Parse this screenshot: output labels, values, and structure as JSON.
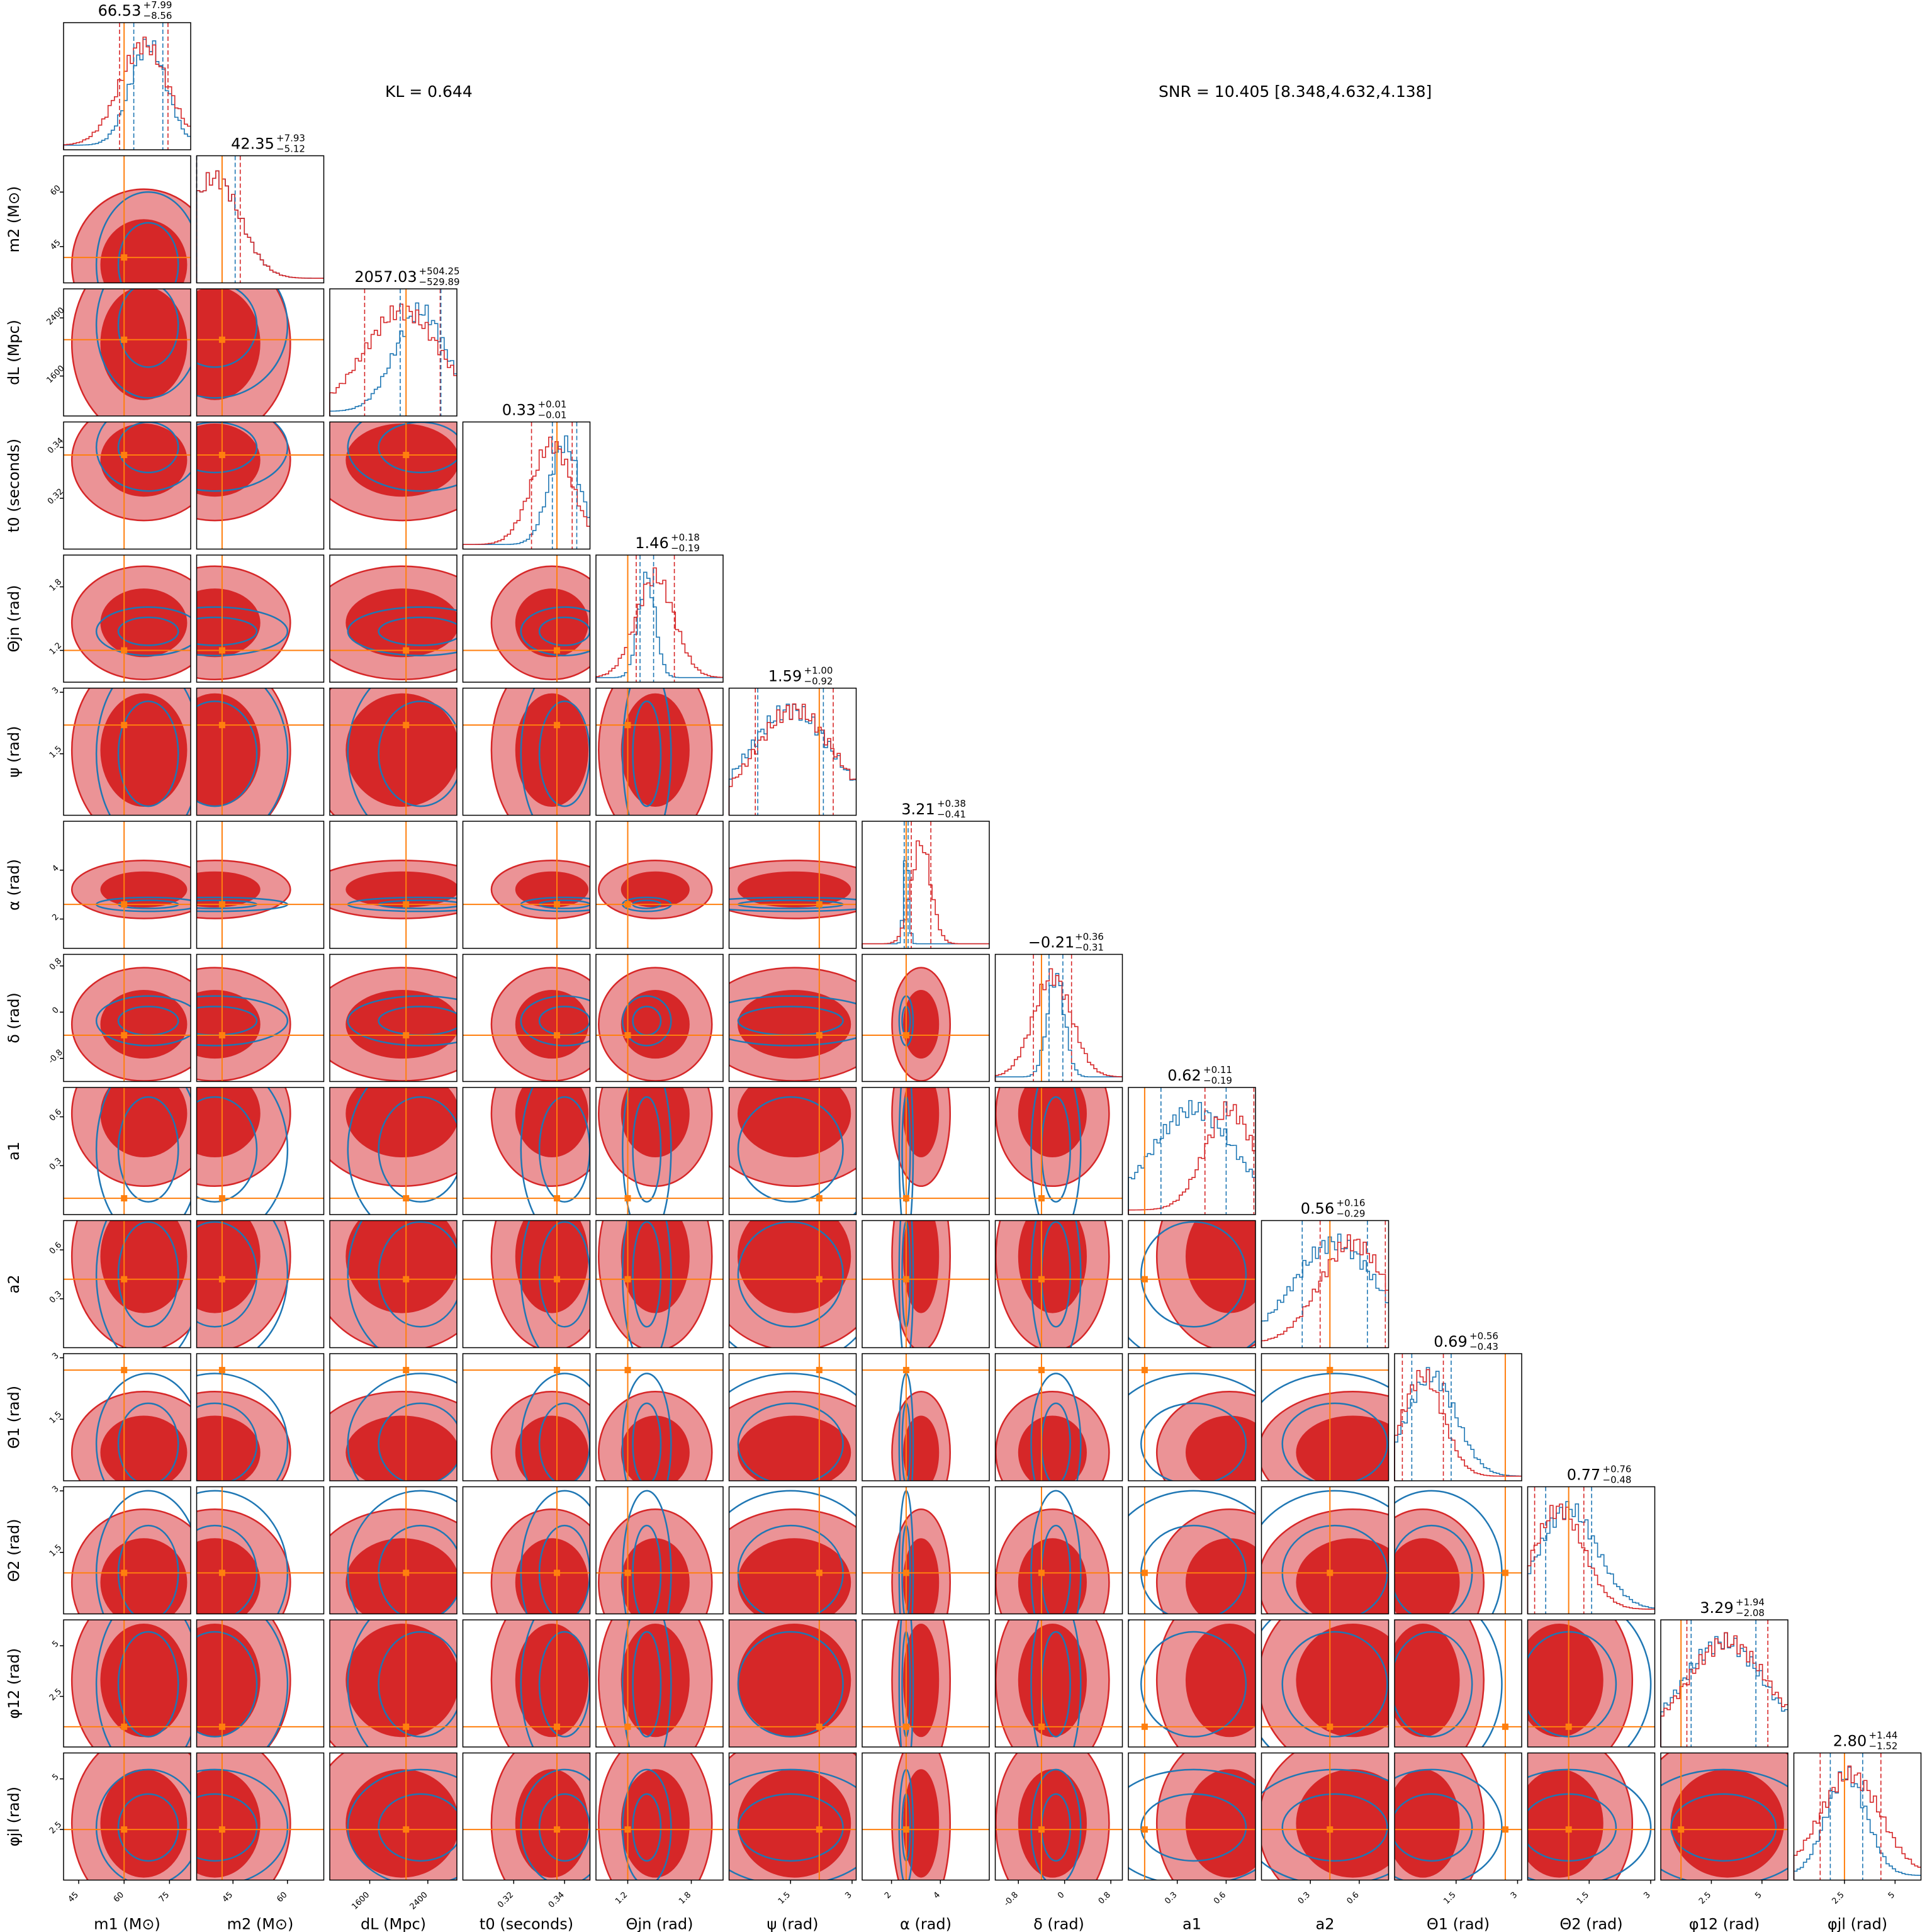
{
  "annotations": {
    "kl": "KL = 0.644",
    "snr": "SNR = 10.405 [8.348,4.632,4.138]"
  },
  "colors": {
    "posterior_1": "#d62728",
    "posterior_1_light": "#eb9396",
    "posterior_2": "#1f77b4",
    "truth": "#ff7f0e",
    "axes": "#000000"
  },
  "chart_data": {
    "type": "corner",
    "parameters": [
      {
        "label": "m1 (M⊙)",
        "true_value": 60,
        "range": [
          40,
          82
        ],
        "ticks": [
          45,
          60,
          75
        ],
        "summary": {
          "median": "66.53",
          "plus": "+7.99",
          "minus": "−8.56"
        },
        "mode1": 66.5,
        "sd1": 8,
        "mode2": 68,
        "sd2": 6
      },
      {
        "label": "m2 (M⊙)",
        "true_value": 42,
        "range": [
          35,
          70
        ],
        "ticks": [
          45,
          60
        ],
        "summary": {
          "median": "42.35",
          "plus": "+7.93",
          "minus": "−5.12"
        },
        "mode1": 40,
        "sd1": 7,
        "mode2": 40,
        "sd2": 7
      },
      {
        "label": "dL (Mpc)",
        "true_value": 2100,
        "range": [
          1050,
          2800
        ],
        "ticks": [
          1600,
          2400
        ],
        "summary": {
          "median": "2057.03",
          "plus": "+504.25",
          "minus": "−529.89"
        },
        "mode1": 2050,
        "sd1": 520,
        "mode2": 2300,
        "sd2": 350
      },
      {
        "label": "t0 (seconds)",
        "true_value": 0.337,
        "range": [
          0.3,
          0.35
        ],
        "ticks": [
          0.32,
          0.34
        ],
        "summary": {
          "median": "0.33",
          "plus": "+0.01",
          "minus": "−0.01"
        },
        "mode1": 0.335,
        "sd1": 0.008,
        "mode2": 0.34,
        "sd2": 0.006
      },
      {
        "label": "Θjn (rad)",
        "true_value": 1.2,
        "range": [
          0.9,
          2.1
        ],
        "ticks": [
          1.2,
          1.8
        ],
        "summary": {
          "median": "1.46",
          "plus": "+0.18",
          "minus": "−0.19"
        },
        "mode1": 1.46,
        "sd1": 0.18,
        "mode2": 1.38,
        "sd2": 0.08
      },
      {
        "label": "ψ (rad)",
        "true_value": 2.2,
        "range": [
          0,
          3.1
        ],
        "ticks": [
          1.5,
          3.0
        ],
        "summary": {
          "median": "1.59",
          "plus": "+1.00",
          "minus": "−0.92"
        },
        "mode1": 1.59,
        "sd1": 0.95,
        "mode2": 1.5,
        "sd2": 1
      },
      {
        "label": "α (rad)",
        "true_value": 2.6,
        "range": [
          0.8,
          6.0
        ],
        "ticks": [
          2,
          4
        ],
        "summary": {
          "median": "3.21",
          "plus": "+0.38",
          "minus": "−0.41"
        },
        "mode1": 3.21,
        "sd1": 0.4,
        "mode2": 2.6,
        "sd2": 0.1
      },
      {
        "label": "δ (rad)",
        "true_value": -0.4,
        "range": [
          -1.2,
          1.0
        ],
        "ticks": [
          -0.8,
          0.0,
          0.8
        ],
        "summary": {
          "median": "−0.21",
          "plus": "+0.36",
          "minus": "−0.31"
        },
        "mode1": -0.21,
        "sd1": 0.33,
        "mode2": -0.15,
        "sd2": 0.15
      },
      {
        "label": "a1",
        "true_value": 0.1,
        "range": [
          0,
          0.78
        ],
        "ticks": [
          0.3,
          0.6
        ],
        "summary": {
          "median": "0.62",
          "plus": "+0.11",
          "minus": "−0.19"
        },
        "mode1": 0.62,
        "sd1": 0.15,
        "mode2": 0.4,
        "sd2": 0.25
      },
      {
        "label": "a2",
        "true_value": 0.42,
        "range": [
          0,
          0.78
        ],
        "ticks": [
          0.3,
          0.6
        ],
        "summary": {
          "median": "0.56",
          "plus": "+0.16",
          "minus": "−0.29"
        },
        "mode1": 0.56,
        "sd1": 0.2,
        "mode2": 0.45,
        "sd2": 0.25
      },
      {
        "label": "Θ1 (rad)",
        "true_value": 2.7,
        "range": [
          0,
          3.1
        ],
        "ticks": [
          1.5,
          3.0
        ],
        "summary": {
          "median": "0.69",
          "plus": "+0.56",
          "minus": "−0.43"
        },
        "mode1": 0.69,
        "sd1": 0.5,
        "mode2": 0.9,
        "sd2": 0.6
      },
      {
        "label": "Θ2 (rad)",
        "true_value": 1.0,
        "range": [
          0,
          3.1
        ],
        "ticks": [
          1.5,
          3.0
        ],
        "summary": {
          "median": "0.77",
          "plus": "+0.76",
          "minus": "−0.48"
        },
        "mode1": 0.77,
        "sd1": 0.6,
        "mode2": 1.0,
        "sd2": 0.7
      },
      {
        "label": "φ12 (rad)",
        "true_value": 1.0,
        "range": [
          0,
          6.28
        ],
        "ticks": [
          2.5,
          5.0
        ],
        "summary": {
          "median": "3.29",
          "plus": "+1.94",
          "minus": "−2.08"
        },
        "mode1": 3.29,
        "sd1": 2.0,
        "mode2": 3.1,
        "sd2": 2.0
      },
      {
        "label": "φjl (rad)",
        "true_value": 2.5,
        "range": [
          0,
          6.28
        ],
        "ticks": [
          2.5,
          5.0
        ],
        "summary": {
          "median": "2.80",
          "plus": "+1.44",
          "minus": "−1.52"
        },
        "mode1": 2.8,
        "sd1": 1.5,
        "mode2": 2.6,
        "sd2": 1.0
      }
    ]
  }
}
